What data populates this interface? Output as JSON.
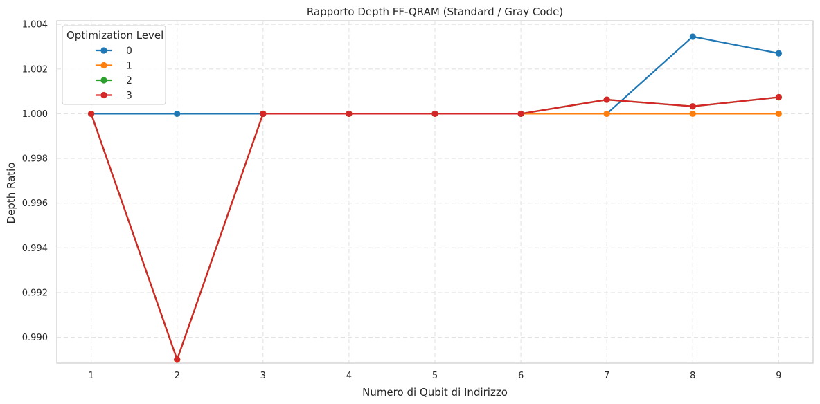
{
  "chart_data": {
    "type": "line",
    "title": "Rapporto Depth FF-QRAM (Standard / Gray Code)",
    "xlabel": "Numero di Qubit di Indirizzo",
    "ylabel": "Depth Ratio",
    "x": [
      1,
      2,
      3,
      4,
      5,
      6,
      7,
      8,
      9
    ],
    "xticks": [
      "1",
      "2",
      "3",
      "4",
      "5",
      "6",
      "7",
      "8",
      "9"
    ],
    "yticks": [
      "0.990",
      "0.992",
      "0.994",
      "0.996",
      "0.998",
      "1.000",
      "1.002",
      "1.004"
    ],
    "xlim": [
      0.6,
      9.4
    ],
    "ylim": [
      0.98884,
      1.00416
    ],
    "grid": true,
    "legend": {
      "title": "Optimization Level",
      "placement": "top-left"
    },
    "series": [
      {
        "name": "0",
        "color": "#1f77b4",
        "values": [
          1.0,
          1.0,
          1.0,
          1.0,
          1.0,
          1.0,
          1.0,
          1.00345,
          1.0027
        ]
      },
      {
        "name": "1",
        "color": "#ff7f0e",
        "values": [
          1.0,
          0.989,
          1.0,
          1.0,
          1.0,
          1.0,
          1.0,
          1.0,
          1.0
        ]
      },
      {
        "name": "2",
        "color": "#2ca02c",
        "values": [
          1.0,
          0.989,
          1.0,
          1.0,
          1.0,
          1.0,
          1.00063,
          1.00033,
          1.00074
        ]
      },
      {
        "name": "3",
        "color": "#d62728",
        "values": [
          1.0,
          0.989,
          1.0,
          1.0,
          1.0,
          1.0,
          1.00063,
          1.00033,
          1.00074
        ]
      }
    ]
  }
}
